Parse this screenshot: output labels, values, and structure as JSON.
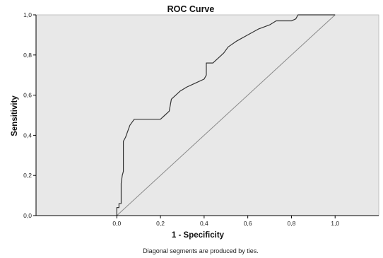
{
  "chart_data": {
    "type": "line",
    "title": "ROC Curve",
    "xlabel": "1 - Specificity",
    "ylabel": "Sensitivity",
    "footnote": "Diagonal segments are produced by ties.",
    "xlim": [
      -0.37,
      1.2
    ],
    "ylim": [
      0,
      1
    ],
    "x_tick_labels": [
      "0,0",
      "0,2",
      "0,4",
      "0,6",
      "0,8",
      "1,0"
    ],
    "x_tick_values": [
      0,
      0.2,
      0.4,
      0.6,
      0.8,
      1.0
    ],
    "y_tick_labels": [
      "0,0",
      "0,2",
      "0,4",
      "0,6",
      "0,8",
      "1,0"
    ],
    "y_tick_values": [
      0,
      0.2,
      0.4,
      0.6,
      0.8,
      1.0
    ],
    "grid": false,
    "colors": {
      "plot_background": "#e8e8e8",
      "roc_line": "#333333",
      "reference_line": "#8a8a8a",
      "axis": "#000000"
    },
    "series": [
      {
        "x": [
          0,
          0,
          0.01,
          0.01,
          0.02,
          0.02,
          0.025,
          0.03,
          0.03,
          0.04,
          0.05,
          0.06,
          0.08,
          0.12,
          0.2,
          0.22,
          0.24,
          0.25,
          0.29,
          0.32,
          0.36,
          0.4,
          0.41,
          0.41,
          0.44,
          0.47,
          0.49,
          0.51,
          0.55,
          0.6,
          0.65,
          0.7,
          0.73,
          0.8,
          0.82,
          0.83,
          1.0
        ],
        "y": [
          0,
          0.04,
          0.04,
          0.06,
          0.06,
          0.16,
          0.2,
          0.22,
          0.37,
          0.39,
          0.42,
          0.45,
          0.48,
          0.48,
          0.48,
          0.5,
          0.52,
          0.58,
          0.62,
          0.64,
          0.66,
          0.68,
          0.7,
          0.76,
          0.76,
          0.79,
          0.81,
          0.84,
          0.87,
          0.9,
          0.93,
          0.95,
          0.97,
          0.97,
          0.98,
          1.0,
          1.0
        ]
      },
      {
        "x": [
          0,
          1
        ],
        "y": [
          0,
          1
        ]
      }
    ]
  }
}
